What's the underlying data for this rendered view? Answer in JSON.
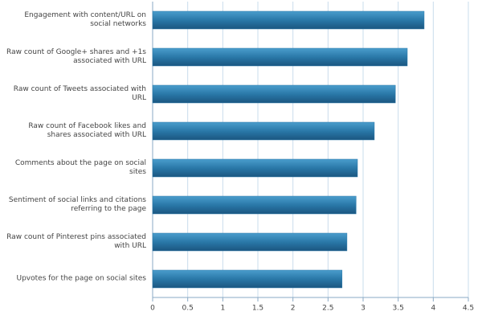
{
  "chart_data": {
    "type": "bar",
    "orientation": "horizontal",
    "categories": [
      "Engagement with content/URL on social networks",
      "Raw count of Google+ shares and +1s associated with URL",
      "Raw count of Tweets associated with URL",
      "Raw count of Facebook likes and shares associated with URL",
      "Comments about the page on social sites",
      "Sentiment of social links and citations referring to the page",
      "Raw count of Pinterest pins associated with URL",
      "Upvotes for the page on social sites"
    ],
    "values": [
      3.87,
      3.63,
      3.46,
      3.16,
      2.92,
      2.9,
      2.77,
      2.7
    ],
    "color": "#2a78a8",
    "xlim": [
      0,
      4.5
    ],
    "xticks": [
      0,
      0.5,
      1,
      1.5,
      2,
      2.5,
      3,
      3.5,
      4,
      4.5
    ],
    "grid": true
  }
}
